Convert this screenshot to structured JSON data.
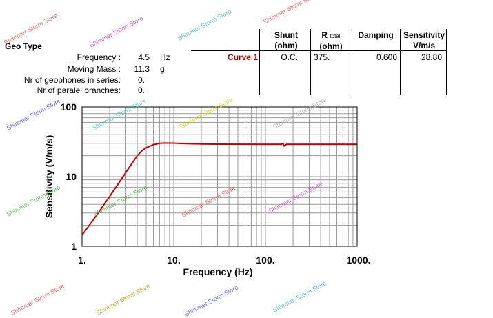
{
  "geo_type_label": "Geo Type",
  "params": [
    {
      "label": "Frequency :",
      "value": "4.5",
      "unit": "Hz"
    },
    {
      "label": "Moving Mass :",
      "value": "11.3",
      "unit": "g"
    },
    {
      "label": "Nr of geophones in series:",
      "value": "0.",
      "unit": ""
    },
    {
      "label": "Nr of paralel branches:",
      "value": "0.",
      "unit": ""
    }
  ],
  "table": {
    "headers": {
      "shunt": "Shunt",
      "shunt_unit": "(ohm)",
      "r_main": "R",
      "r_sub": "total",
      "r_unit": "(ohm)",
      "damping": "Damping",
      "sensitivity": "Sensitivity",
      "sensitivity_unit": "V/m/s"
    },
    "row": {
      "name": "Curve 1",
      "shunt": "O.C.",
      "r_total": "375.",
      "damping": "0.600",
      "sensitivity": "28.80"
    }
  },
  "watermark_text": "Shimmer Storm Store",
  "chart_data": {
    "type": "line",
    "xlabel": "Frequency (Hz)",
    "ylabel": "Sensitivity (V/m/s)",
    "x_scale": "log",
    "y_scale": "log",
    "xlim": [
      1,
      1000
    ],
    "ylim": [
      1,
      100
    ],
    "x_ticks": [
      "1.",
      "10.",
      "100.",
      "1000."
    ],
    "y_ticks": [
      "1",
      "10",
      "100"
    ],
    "grid": true,
    "color": "#c00000",
    "series": [
      {
        "x": [
          1,
          1.2,
          1.5,
          2,
          2.5,
          3,
          3.5,
          4,
          4.5,
          5,
          6,
          7,
          8,
          10,
          12,
          15,
          20,
          30,
          50,
          100,
          150,
          155,
          160,
          165,
          170,
          200,
          500,
          1000
        ],
        "y": [
          1.45,
          2.0,
          3.0,
          5.2,
          8.0,
          11.5,
          15.5,
          20.0,
          23.5,
          26.0,
          28.7,
          30.0,
          30.3,
          30.2,
          29.9,
          29.6,
          29.4,
          29.2,
          29.1,
          29.0,
          29.0,
          30.2,
          27.5,
          28.4,
          29.0,
          29.0,
          29.0,
          29.0
        ]
      }
    ]
  }
}
